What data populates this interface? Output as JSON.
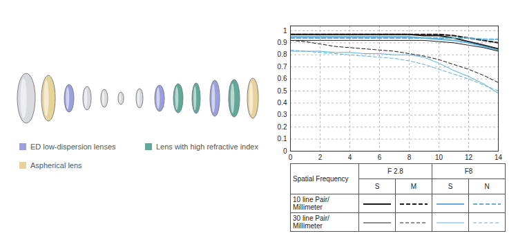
{
  "chart_data": {
    "type": "line",
    "x": [
      0,
      1,
      2,
      3,
      4,
      5,
      6,
      7,
      8,
      9,
      10,
      11,
      12,
      13,
      14
    ],
    "xlim": [
      0,
      14
    ],
    "xticks": [
      0,
      2,
      4,
      6,
      8,
      10,
      12,
      14
    ],
    "ylim": [
      0,
      1.04
    ],
    "yticks": [
      0,
      0.1,
      0.2,
      0.3,
      0.4,
      0.5,
      0.6,
      0.7,
      0.8,
      0.9,
      1
    ],
    "grid": true,
    "legend": "bottom",
    "legend_title": "Spatial Frequency",
    "series": [
      {
        "name": "S",
        "group": "F 2.8",
        "frequency": "10 line Pair/Millimeter",
        "color": "#1a1a1a",
        "line_style": "solid",
        "values": [
          0.97,
          0.97,
          0.97,
          0.97,
          0.97,
          0.97,
          0.97,
          0.97,
          0.97,
          0.96,
          0.96,
          0.94,
          0.91,
          0.88,
          0.85
        ]
      },
      {
        "name": "M",
        "group": "F 2.8",
        "frequency": "10 line Pair/Millimeter",
        "color": "#1a1a1a",
        "line_style": "dashed",
        "values": [
          0.97,
          0.97,
          0.97,
          0.97,
          0.97,
          0.97,
          0.97,
          0.97,
          0.97,
          0.97,
          0.97,
          0.96,
          0.94,
          0.92,
          0.9
        ]
      },
      {
        "name": "S",
        "group": "F8",
        "frequency": "10 line Pair/Millimeter",
        "color": "#5aafe0",
        "line_style": "solid",
        "values": [
          0.95,
          0.95,
          0.95,
          0.95,
          0.95,
          0.95,
          0.95,
          0.95,
          0.95,
          0.94,
          0.93,
          0.92,
          0.9,
          0.87,
          0.84
        ]
      },
      {
        "name": "N",
        "group": "F8",
        "frequency": "10 line Pair/Millimeter",
        "color": "#5aafe0",
        "line_style": "dashed",
        "values": [
          0.94,
          0.94,
          0.94,
          0.94,
          0.94,
          0.94,
          0.94,
          0.94,
          0.94,
          0.94,
          0.94,
          0.94,
          0.94,
          0.93,
          0.93
        ]
      },
      {
        "name": "S",
        "group": "F 2.8",
        "frequency": "30 line Pair/Millimeter",
        "color": "#1a1a1a",
        "line_style": "solid",
        "values": [
          0.92,
          0.92,
          0.92,
          0.92,
          0.92,
          0.92,
          0.92,
          0.92,
          0.92,
          0.92,
          0.91,
          0.9,
          0.88,
          0.86,
          0.83
        ]
      },
      {
        "name": "M",
        "group": "F 2.8",
        "frequency": "30 line Pair/Millimeter",
        "color": "#1a1a1a",
        "line_style": "dashed",
        "values": [
          0.92,
          0.91,
          0.89,
          0.87,
          0.86,
          0.85,
          0.84,
          0.83,
          0.81,
          0.79,
          0.76,
          0.72,
          0.68,
          0.63,
          0.57
        ]
      },
      {
        "name": "S",
        "group": "F8",
        "frequency": "30 line Pair/Millimeter",
        "color": "#5aafe0",
        "line_style": "solid",
        "values": [
          0.83,
          0.83,
          0.83,
          0.82,
          0.82,
          0.81,
          0.81,
          0.8,
          0.8,
          0.78,
          0.73,
          0.67,
          0.62,
          0.56,
          0.48
        ]
      },
      {
        "name": "N",
        "group": "F8",
        "frequency": "30 line Pair/Millimeter",
        "color": "#5aafe0",
        "line_style": "dashed",
        "values": [
          0.84,
          0.83,
          0.82,
          0.81,
          0.8,
          0.79,
          0.78,
          0.77,
          0.75,
          0.72,
          0.68,
          0.64,
          0.6,
          0.55,
          0.5
        ]
      }
    ]
  },
  "lens_legend": [
    {
      "name": "ED low-dispersion lenses",
      "color": "#9b9fdc"
    },
    {
      "name": "Lens with high refractive index",
      "color": "#5fa89a"
    },
    {
      "name": "Aspherical lens",
      "color": "#e6d39a"
    }
  ]
}
